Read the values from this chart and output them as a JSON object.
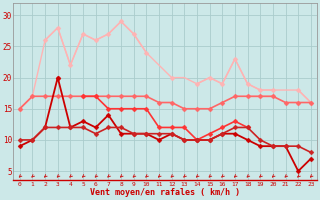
{
  "x": [
    0,
    1,
    2,
    3,
    4,
    5,
    6,
    7,
    8,
    9,
    10,
    11,
    12,
    13,
    14,
    15,
    16,
    17,
    18,
    19,
    20,
    21,
    22,
    23
  ],
  "series": [
    {
      "name": "rafales_top",
      "color": "#FFB3B3",
      "linewidth": 1.0,
      "markersize": 2.5,
      "marker": "D",
      "values": [
        null,
        null,
        26,
        28,
        22,
        27,
        26,
        27,
        29,
        27,
        24,
        null,
        20,
        null,
        19,
        20,
        19,
        23,
        19,
        18,
        18,
        null,
        18,
        16
      ]
    },
    {
      "name": "rafales_envelope_top",
      "color": "#FFB3B3",
      "linewidth": 1.0,
      "markersize": 0,
      "marker": null,
      "values": [
        15,
        17,
        26,
        28,
        22,
        27,
        26,
        27,
        29,
        27,
        24,
        22,
        20,
        20,
        19,
        20,
        19,
        23,
        19,
        18,
        18,
        18,
        18,
        16
      ]
    },
    {
      "name": "rafales_envelope_bot",
      "color": "#FFB3B3",
      "linewidth": 1.0,
      "markersize": 2.5,
      "marker": "D",
      "values": [
        15,
        17,
        null,
        null,
        null,
        null,
        null,
        null,
        null,
        null,
        null,
        null,
        null,
        null,
        null,
        null,
        null,
        null,
        17,
        17,
        17,
        null,
        16,
        null
      ]
    },
    {
      "name": "vent_upper",
      "color": "#FF6666",
      "linewidth": 1.2,
      "markersize": 2.5,
      "marker": "D",
      "values": [
        15,
        17,
        17,
        17,
        17,
        17,
        17,
        17,
        17,
        17,
        17,
        16,
        16,
        15,
        15,
        15,
        16,
        17,
        17,
        17,
        17,
        16,
        16,
        16
      ]
    },
    {
      "name": "vent_medium",
      "color": "#FF3333",
      "linewidth": 1.2,
      "markersize": 2.5,
      "marker": "D",
      "values": [
        null,
        null,
        null,
        20,
        null,
        17,
        17,
        15,
        15,
        15,
        15,
        12,
        12,
        12,
        10,
        11,
        12,
        13,
        12,
        null,
        null,
        null,
        null,
        null
      ]
    },
    {
      "name": "vent_moyen_main",
      "color": "#CC0000",
      "linewidth": 1.3,
      "markersize": 2.5,
      "marker": "D",
      "values": [
        9,
        10,
        12,
        20,
        12,
        13,
        12,
        14,
        11,
        11,
        11,
        10,
        11,
        10,
        10,
        10,
        11,
        11,
        10,
        9,
        9,
        9,
        5,
        7
      ]
    },
    {
      "name": "vent_moyen_low",
      "color": "#CC2222",
      "linewidth": 1.2,
      "markersize": 2.5,
      "marker": "D",
      "values": [
        10,
        10,
        12,
        12,
        12,
        12,
        11,
        12,
        12,
        11,
        11,
        11,
        11,
        10,
        10,
        10,
        11,
        12,
        12,
        10,
        9,
        9,
        9,
        8
      ]
    }
  ],
  "arrows": {
    "y_data": 4.2,
    "color": "#CC2222",
    "size": 5
  },
  "xlabel": "Vent moyen/en rafales ( km/h )",
  "ylabel_ticks": [
    5,
    10,
    15,
    20,
    25,
    30
  ],
  "xlim": [
    -0.5,
    23.5
  ],
  "ylim": [
    3.5,
    32
  ],
  "background_color": "#CCE8E8",
  "grid_color": "#AACCCC",
  "tick_color": "#CC0000",
  "label_color": "#CC0000"
}
